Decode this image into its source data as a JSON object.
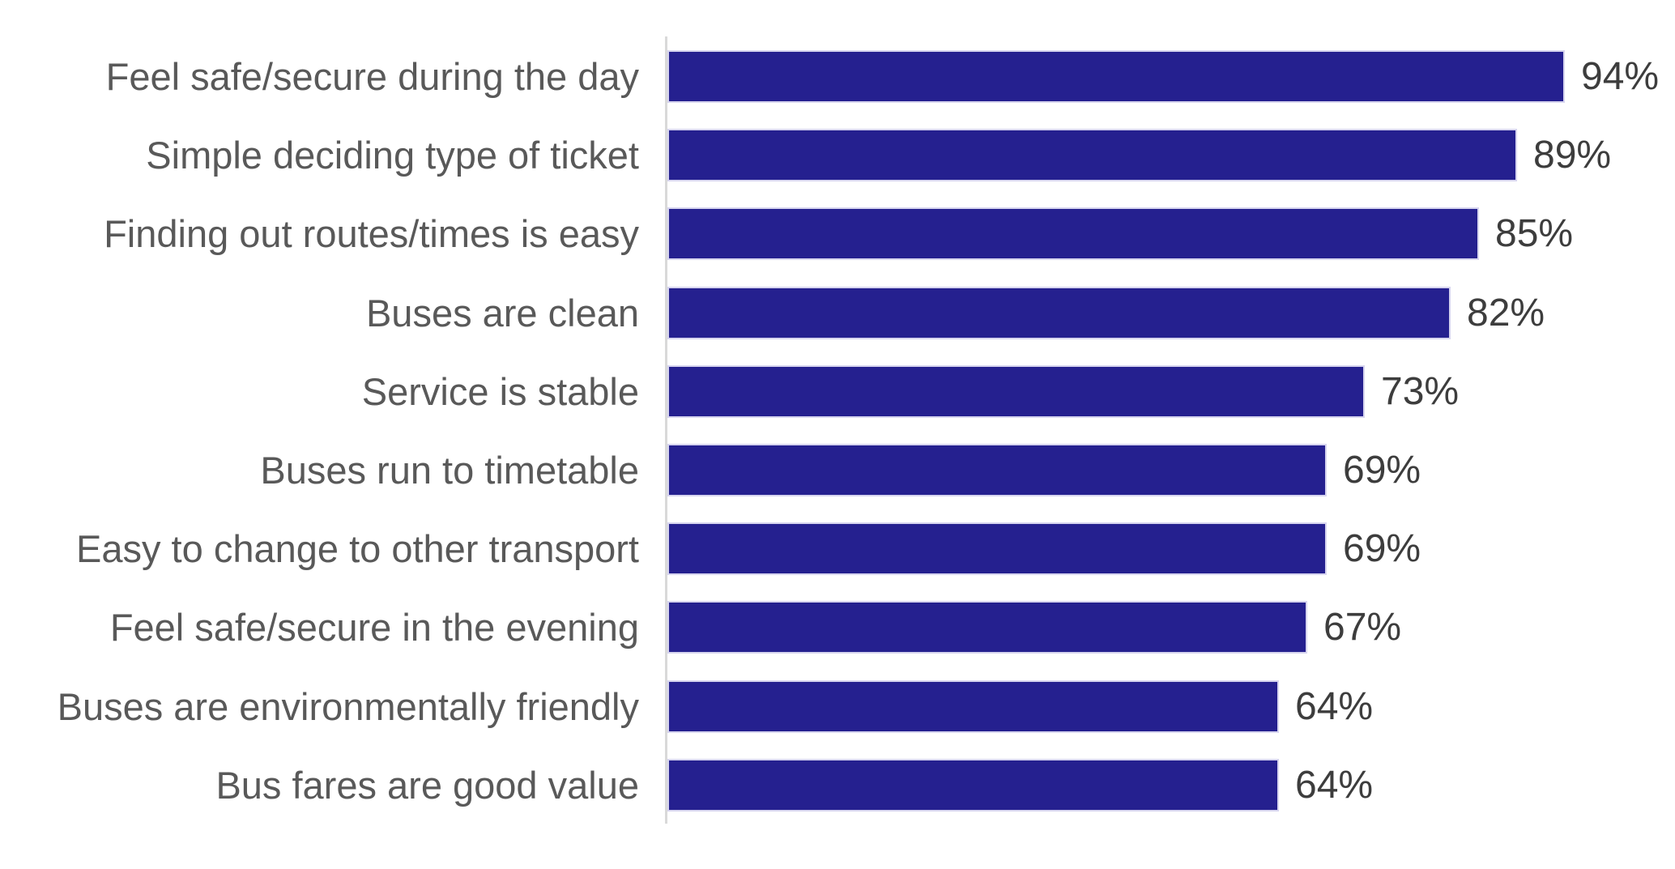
{
  "chart_data": {
    "type": "bar",
    "orientation": "horizontal",
    "title": "",
    "xlabel": "",
    "ylabel": "",
    "xlim": [
      0,
      100
    ],
    "grid": false,
    "legend": false,
    "value_suffix": "%",
    "categories": [
      "Feel safe/secure during the day",
      "Simple deciding type of ticket",
      "Finding out routes/times is easy",
      "Buses are clean",
      "Service is stable",
      "Buses run to timetable",
      "Easy to change to other transport",
      "Feel safe/secure in the evening",
      "Buses are environmentally friendly",
      "Bus fares are good value"
    ],
    "values": [
      94,
      89,
      85,
      82,
      73,
      69,
      69,
      67,
      64,
      64
    ],
    "value_labels": [
      "94%",
      "89%",
      "85%",
      "82%",
      "73%",
      "69%",
      "69%",
      "67%",
      "64%",
      "64%"
    ],
    "colors": {
      "bar": "#25208f",
      "bar_edge": "#d7d5ef",
      "category_label": "#595959",
      "value_label": "#3d3d3d",
      "axis_line": "#d9d9d9",
      "background": "#ffffff"
    }
  }
}
